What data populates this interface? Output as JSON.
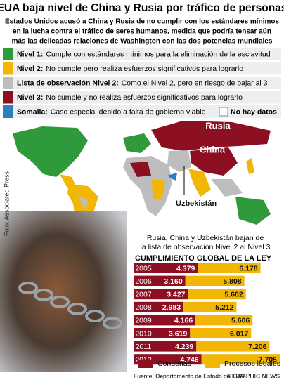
{
  "header": {
    "title": "EUA baja nivel de China y Rusia por tráfico de personas",
    "subtitle": [
      "Estados Unidos acusó a China y Rusia de no cumplir con los estándares mínimos",
      "en la lucha contra el tráfico de seres humanos, medida que podría tensar aún",
      "más las delicadas relaciones de Washington con las dos potencias mundiales"
    ]
  },
  "legend": [
    {
      "label": "Nivel 1:",
      "text": "Cumple con estándares mínimos para la eliminación de la esclavitud",
      "color": "#2f9a3c"
    },
    {
      "label": "Nivel 2:",
      "text": "No cumple pero realiza esfuerzos significativos para lograrlo",
      "color": "#f2b705"
    },
    {
      "label": "Lista de observación Nivel 2:",
      "text": "Como el Nivel 2, pero en riesgo de bajar al 3",
      "color": "#bdbdbd"
    },
    {
      "label": "Nivel 3:",
      "text": "No cumple y no realiza esfuerzos significativos para lograrlo",
      "color": "#8c1022"
    },
    {
      "label": "Somalia:",
      "text": "Caso especial debido a falta de gobierno viable",
      "color": "#2a7fc0"
    }
  ],
  "no_data": "No hay datos",
  "map_labels": [
    "Rusia",
    "China",
    "Uzbekistán"
  ],
  "photo_credit": "Foto: Associated Press",
  "note": [
    "Rusia, China y Uzbekistán bajan de",
    "la lista de observación Nivel 2 al Nivel 3"
  ],
  "footer": {
    "source": "Fuente: Departamento de Estado de EUA",
    "credit": "© GRAPHIC NEWS"
  },
  "chart_data": {
    "type": "bar",
    "orientation": "horizontal",
    "stacked": true,
    "title": "CUMPLIMIENTO GLOBAL DE LA LEY",
    "categories": [
      "2005",
      "2006",
      "2007",
      "2008",
      "2009",
      "2010",
      "2011",
      "2012"
    ],
    "series": [
      {
        "name": "Condenas",
        "color": "#8c1022",
        "values": [
          4379,
          3160,
          3427,
          2983,
          4166,
          3619,
          4239,
          4746
        ],
        "value_labels": [
          "4.379",
          "3.160",
          "3.427",
          "2.983",
          "4.166",
          "3.619",
          "4.239",
          "4.746"
        ]
      },
      {
        "name": "Procesos legales",
        "color": "#f2b705",
        "values": [
          6178,
          5808,
          5682,
          5212,
          5606,
          6017,
          7206,
          7705
        ],
        "value_labels": [
          "6.178",
          "5.808",
          "5.682",
          "5.212",
          "5.606",
          "6.017",
          "7.206",
          "7.705"
        ]
      }
    ]
  }
}
